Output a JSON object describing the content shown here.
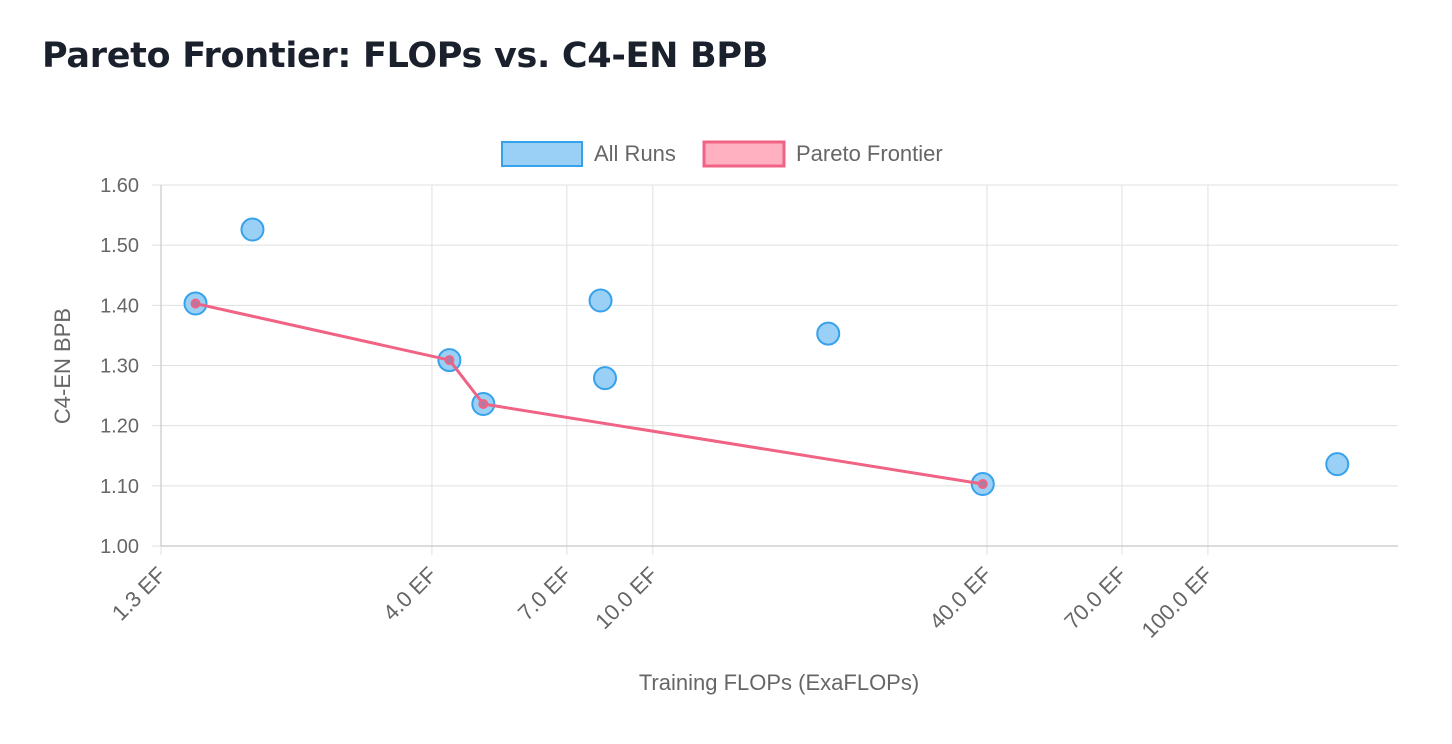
{
  "page": {
    "title": "Pareto Frontier: FLOPs vs. C4-EN BPB"
  },
  "colors": {
    "all_runs_fill": "#9ad0f5",
    "all_runs_border": "#36a2eb",
    "pareto_line": "#f06385",
    "pareto_fill": "#ffb1c1",
    "grid": "#e0e0e0",
    "text": "#666666"
  },
  "chart_data": {
    "type": "scatter",
    "title": "Pareto Frontier: FLOPs vs. C4-EN BPB",
    "xlabel": "Training FLOPs (ExaFLOPs)",
    "ylabel": "C4-EN BPB",
    "x_scale": "log",
    "xlim": [
      1.3,
      220
    ],
    "ylim": [
      1.0,
      1.6
    ],
    "x_ticks": [
      1.3,
      4.0,
      7.0,
      10.0,
      40.0,
      70.0,
      100.0
    ],
    "x_tick_labels": [
      "1.3 EF",
      "4.0 EF",
      "7.0 EF",
      "10.0 EF",
      "40.0 EF",
      "70.0 EF",
      "100.0 EF"
    ],
    "y_ticks": [
      1.0,
      1.1,
      1.2,
      1.3,
      1.4,
      1.5,
      1.6
    ],
    "y_tick_labels": [
      "1.00",
      "1.10",
      "1.20",
      "1.30",
      "1.40",
      "1.50",
      "1.60"
    ],
    "legend": {
      "position": "top-center",
      "entries": [
        "All Runs",
        "Pareto Frontier"
      ]
    },
    "series": [
      {
        "name": "All Runs",
        "kind": "scatter",
        "points": [
          {
            "x": 1.5,
            "y": 1.403
          },
          {
            "x": 1.9,
            "y": 1.526
          },
          {
            "x": 4.3,
            "y": 1.309
          },
          {
            "x": 4.95,
            "y": 1.236
          },
          {
            "x": 8.05,
            "y": 1.408
          },
          {
            "x": 8.2,
            "y": 1.279
          },
          {
            "x": 20.7,
            "y": 1.353
          },
          {
            "x": 39.3,
            "y": 1.103
          },
          {
            "x": 171.0,
            "y": 1.136
          }
        ]
      },
      {
        "name": "Pareto Frontier",
        "kind": "line",
        "points": [
          {
            "x": 1.5,
            "y": 1.403
          },
          {
            "x": 4.3,
            "y": 1.309
          },
          {
            "x": 4.95,
            "y": 1.236
          },
          {
            "x": 39.3,
            "y": 1.103
          }
        ]
      }
    ]
  }
}
